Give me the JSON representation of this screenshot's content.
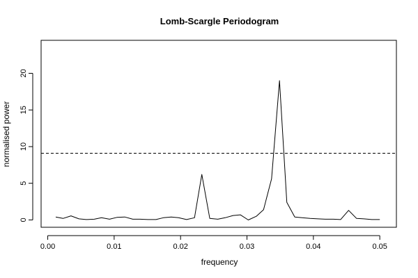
{
  "chart_data": {
    "type": "line",
    "title": "Lomb-Scargle Periodogram",
    "xlabel": "frequency",
    "ylabel": "normalised power",
    "xlim": [
      -0.001,
      0.0525
    ],
    "ylim": [
      -1,
      24.5
    ],
    "xticks": [
      0.0,
      0.01,
      0.02,
      0.03,
      0.04,
      0.05
    ],
    "xtick_labels": [
      "0.00",
      "0.01",
      "0.02",
      "0.03",
      "0.04",
      "0.05"
    ],
    "yticks": [
      0,
      5,
      10,
      15,
      20
    ],
    "ytick_labels": [
      "0",
      "5",
      "10",
      "15",
      "20"
    ],
    "grid": false,
    "series": [
      {
        "x": [
          0.0012,
          0.0023,
          0.0035,
          0.0047,
          0.0058,
          0.007,
          0.0081,
          0.0093,
          0.0104,
          0.0116,
          0.0128,
          0.0139,
          0.0151,
          0.0163,
          0.0174,
          0.0186,
          0.0197,
          0.0209,
          0.0221,
          0.0232,
          0.0244,
          0.0256,
          0.0267,
          0.0279,
          0.029,
          0.0302,
          0.0314,
          0.0325,
          0.0337,
          0.0349,
          0.036,
          0.0372,
          0.0383,
          0.0395,
          0.0407,
          0.0418,
          0.043,
          0.0441,
          0.0453,
          0.0465,
          0.0476,
          0.0488,
          0.05
        ],
        "y": [
          0.4,
          0.2,
          0.55,
          0.15,
          0.05,
          0.1,
          0.3,
          0.1,
          0.35,
          0.4,
          0.1,
          0.1,
          0.05,
          0.05,
          0.3,
          0.4,
          0.3,
          0.05,
          0.3,
          6.2,
          0.2,
          0.1,
          0.3,
          0.6,
          0.7,
          0.0,
          0.5,
          1.4,
          5.6,
          19.0,
          2.4,
          0.4,
          0.3,
          0.2,
          0.15,
          0.1,
          0.1,
          0.05,
          1.3,
          0.2,
          0.15,
          0.05,
          0.05
        ]
      }
    ],
    "reference_line": {
      "y": 9.1,
      "style": "dashed"
    },
    "colors": {
      "line": "#000000",
      "axis": "#000000",
      "background": "#ffffff"
    }
  }
}
